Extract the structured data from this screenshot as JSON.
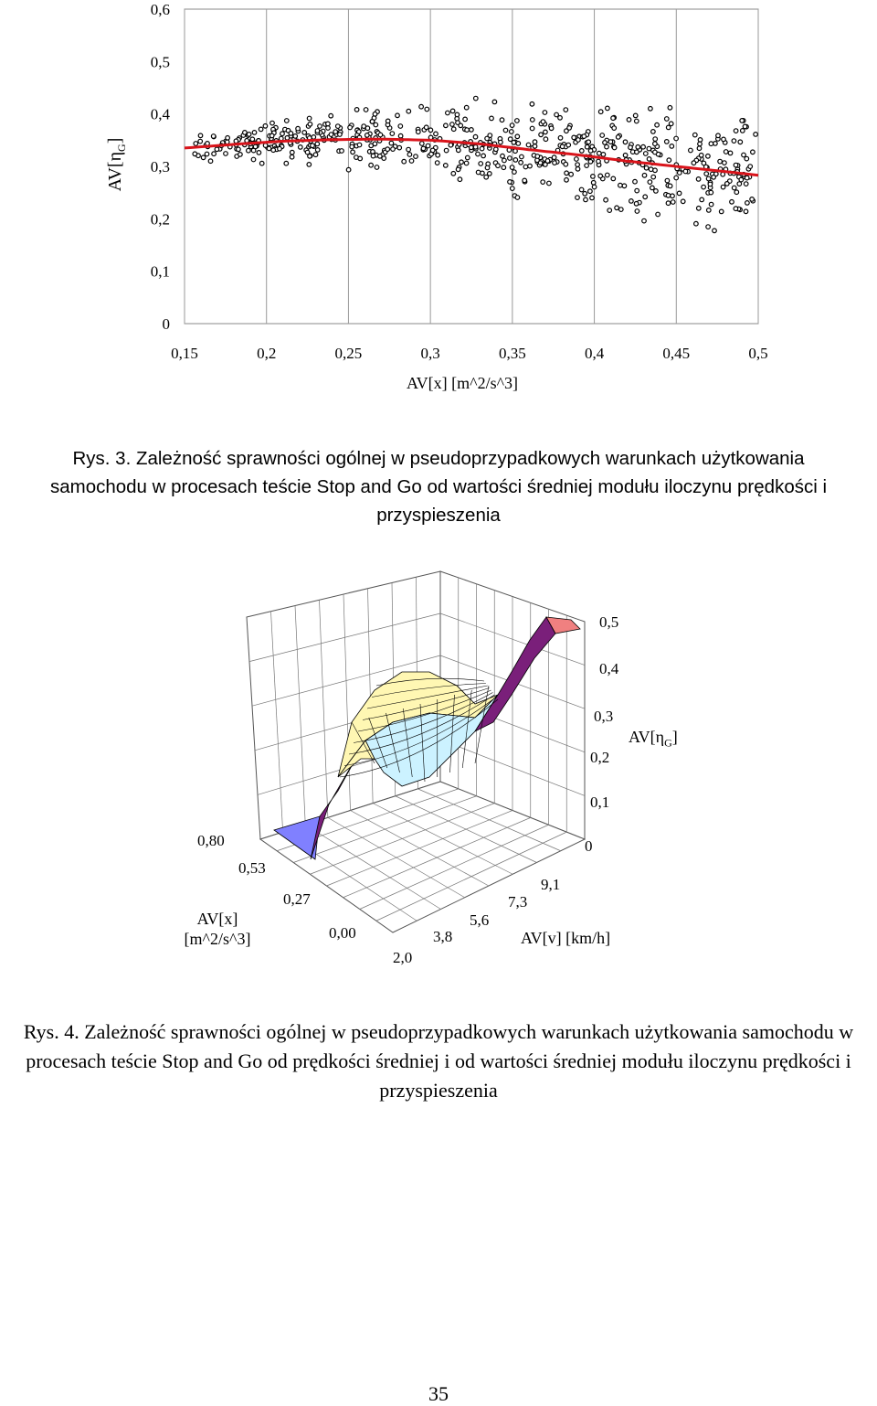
{
  "figure3": {
    "chart_data": {
      "type": "scatter",
      "xlabel": "AV[x] [m^2/s^3]",
      "ylabel_main": "AV[η",
      "ylabel_sub": "G",
      "ylabel_close": "]",
      "xlim": [
        0.15,
        0.5
      ],
      "ylim": [
        0,
        0.6
      ],
      "x_ticks": [
        "0,15",
        "0,2",
        "0,25",
        "0,3",
        "0,35",
        "0,4",
        "0,45",
        "0,5"
      ],
      "y_ticks": [
        "0,6",
        "0,5",
        "0,4",
        "0,3",
        "0,2",
        "0,1",
        "0"
      ],
      "grid": "vertical",
      "marker_color": "#000000",
      "trend_color": "#d9141b",
      "trend": {
        "type": "polynomial",
        "x": [
          0.15,
          0.18,
          0.21,
          0.24,
          0.27,
          0.3,
          0.33,
          0.36,
          0.39,
          0.42,
          0.45,
          0.48,
          0.5
        ],
        "y": [
          0.335,
          0.342,
          0.348,
          0.351,
          0.352,
          0.35,
          0.343,
          0.332,
          0.322,
          0.31,
          0.3,
          0.29,
          0.283
        ]
      },
      "scatter_note": "approx. 800 points, 0.155-0.5 on x, 0.19-0.40 on y, clustered around the trend"
    },
    "caption": "Rys. 3. Zależność sprawności ogólnej w pseudoprzypadkowych warunkach użytkowania samochodu w procesach teście Stop and Go od wartości średniej modułu iloczynu prędkości i przyspieszenia"
  },
  "figure4": {
    "chart_data": {
      "type": "surface",
      "z_ticks": [
        "0,5",
        "0,4",
        "0,3",
        "0,2",
        "0,1",
        "0"
      ],
      "zlabel_main": "AV[η",
      "zlabel_sub": "G",
      "zlabel_close": "]",
      "x_ticks": [
        "0,80",
        "0,53",
        "0,27",
        "0,00"
      ],
      "xlabel_line1": "AV[x]",
      "xlabel_line2": "[m^2/s^3]",
      "v_ticks": [
        "2,0",
        "3,8",
        "5,6",
        "7,3",
        "9,1"
      ],
      "vlabel": "AV[v] [km/h]",
      "colors": {
        "high": "#f08080",
        "upper": "#7a1f7a",
        "mid": "#fff7b3",
        "low": "#ccf2ff",
        "edge_left": "#8080ff"
      }
    },
    "caption": "Rys. 4. Zależność sprawności ogólnej w pseudoprzypadkowych warunkach użytkowania samochodu w procesach teście Stop and Go od prędkości średniej i od wartości średniej modułu iloczynu prędkości i przyspieszenia"
  },
  "page_number": "35"
}
